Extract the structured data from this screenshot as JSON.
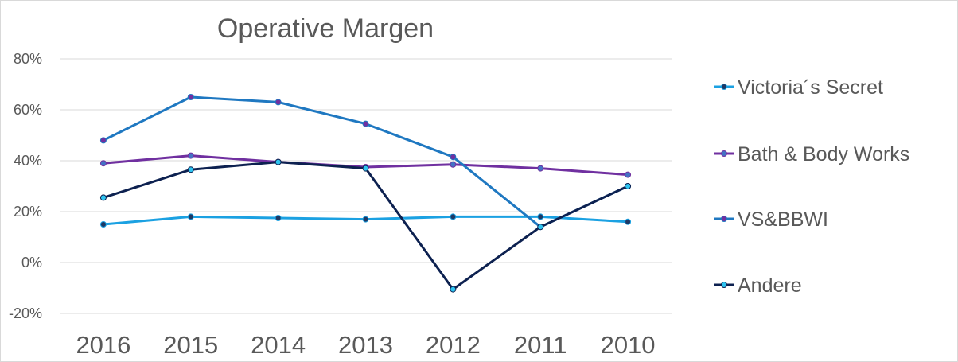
{
  "chart_data": {
    "type": "line",
    "title": "Operative Margen",
    "xlabel": "",
    "ylabel": "",
    "categories": [
      "2016",
      "2015",
      "2014",
      "2013",
      "2012",
      "2011",
      "2010"
    ],
    "ylim": [
      -20,
      80
    ],
    "yticks": [
      80,
      60,
      40,
      20,
      0,
      -20
    ],
    "ytick_labels": [
      "80%",
      "60%",
      "40%",
      "20%",
      "0%",
      "-20%"
    ],
    "grid": true,
    "legend_position": "right",
    "series": [
      {
        "name": "Victoria´s Secret",
        "color": "#1ba1e2",
        "marker_color": "#1f3864",
        "values": [
          15,
          18,
          17.5,
          17,
          18,
          18,
          16
        ]
      },
      {
        "name": "Bath & Body Works",
        "color": "#7030a0",
        "marker_color": "#4472c4",
        "values": [
          39,
          42,
          39.5,
          37.5,
          38.5,
          37,
          34.5
        ]
      },
      {
        "name": "VS&BBWI",
        "color": "#1f78c1",
        "marker_color": "#7030a0",
        "values": [
          48,
          65,
          63,
          54.5,
          41.5,
          14,
          30
        ]
      },
      {
        "name": "Andere",
        "color": "#0d2150",
        "marker_color": "#2ec4f0",
        "values": [
          25.5,
          36.5,
          39.5,
          37,
          -10.5,
          14,
          30
        ]
      }
    ]
  }
}
